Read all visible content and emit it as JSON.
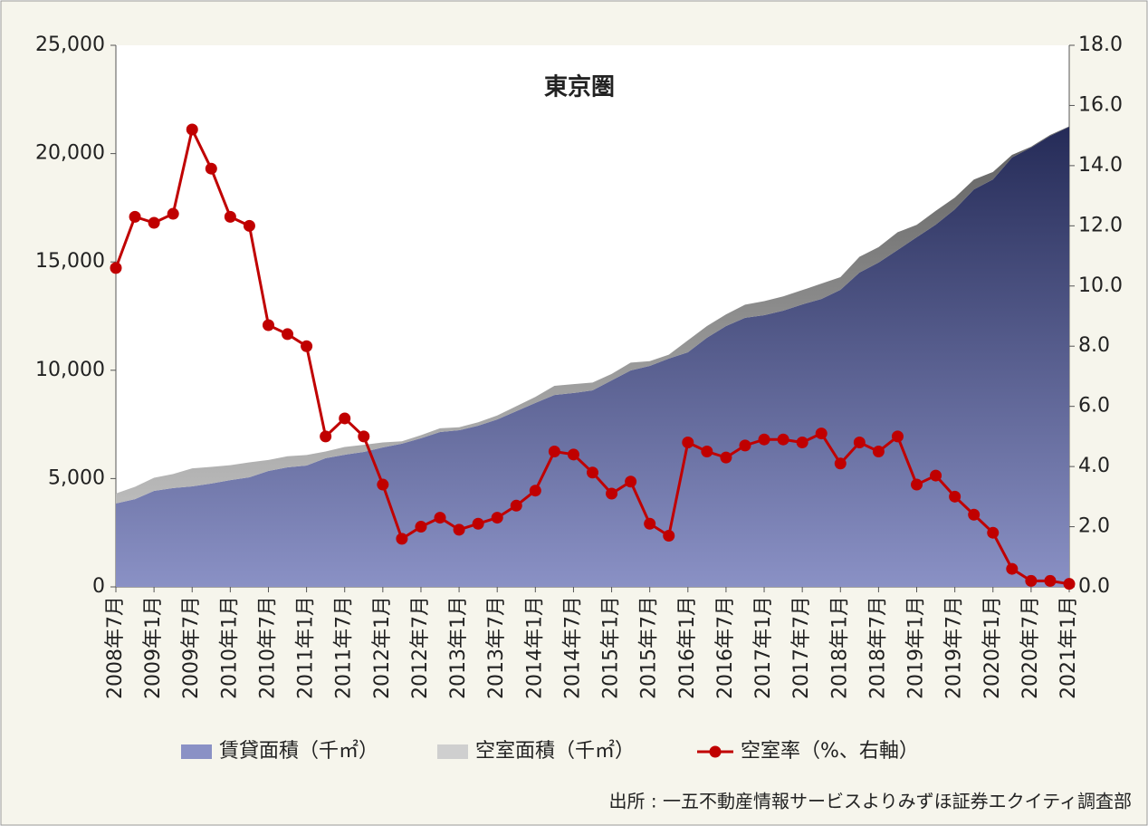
{
  "chart_data": {
    "type": "area",
    "title": "東京圏",
    "source": "出所 : 一五不動産情報サービスよりみずほ証券エクイティ調査部",
    "stacked": true,
    "categories": [
      "2008年7月",
      null,
      "2009年1月",
      null,
      "2009年7月",
      null,
      "2010年1月",
      null,
      "2010年7月",
      null,
      "2011年1月",
      null,
      "2011年7月",
      null,
      "2012年1月",
      null,
      "2012年7月",
      null,
      "2013年1月",
      null,
      "2013年7月",
      null,
      "2014年1月",
      null,
      "2014年7月",
      null,
      "2015年1月",
      null,
      "2015年7月",
      null,
      "2016年1月",
      null,
      "2016年7月",
      null,
      "2017年1月",
      null,
      "2017年7月",
      null,
      "2018年1月",
      null,
      "2018年7月",
      null,
      "2019年1月",
      null,
      "2019年7月",
      null,
      "2020年1月",
      null,
      "2020年7月",
      null,
      "2021年1月"
    ],
    "series": [
      {
        "name": "賃貸面積（千㎡）",
        "type": "area",
        "color": "#2b3796",
        "values": [
          3850,
          4050,
          4430,
          4560,
          4640,
          4770,
          4930,
          5060,
          5350,
          5520,
          5600,
          5940,
          6100,
          6230,
          6440,
          6610,
          6860,
          7150,
          7230,
          7440,
          7730,
          8110,
          8490,
          8860,
          8950,
          9070,
          9530,
          9990,
          10200,
          10540,
          10830,
          11500,
          12040,
          12420,
          12540,
          12750,
          13040,
          13290,
          13710,
          14510,
          14970,
          15550,
          16140,
          16720,
          17430,
          18350,
          18810,
          19820,
          20280,
          20820,
          21240
        ]
      },
      {
        "name": "空室面積（千㎡）",
        "type": "area",
        "color": "#a8a8a8",
        "values": [
          460,
          570,
          610,
          650,
          830,
          770,
          690,
          690,
          510,
          510,
          490,
          310,
          360,
          330,
          230,
          110,
          140,
          170,
          140,
          160,
          180,
          230,
          280,
          420,
          410,
          360,
          300,
          360,
          220,
          180,
          550,
          540,
          540,
          610,
          650,
          660,
          660,
          710,
          590,
          730,
          710,
          820,
          570,
          640,
          540,
          450,
          340,
          120,
          40,
          40,
          20
        ]
      },
      {
        "name": "空室率（%、右軸）",
        "type": "line",
        "axis": "y2",
        "color": "#c00000",
        "values": [
          10.6,
          12.3,
          12.1,
          12.4,
          15.2,
          13.9,
          12.3,
          12.0,
          8.7,
          8.4,
          8.0,
          5.0,
          5.6,
          5.0,
          3.4,
          1.6,
          2.0,
          2.3,
          1.9,
          2.1,
          2.3,
          2.7,
          3.2,
          4.5,
          4.4,
          3.8,
          3.1,
          3.5,
          2.1,
          1.7,
          4.8,
          4.5,
          4.3,
          4.7,
          4.9,
          4.9,
          4.8,
          5.1,
          4.1,
          4.8,
          4.5,
          5.0,
          3.4,
          3.7,
          3.0,
          2.4,
          1.8,
          0.6,
          0.2,
          0.2,
          0.1
        ]
      }
    ],
    "ylim": [
      0,
      25000
    ],
    "yticks": [
      0,
      {
        "value": 5000,
        "label": "5,000"
      },
      {
        "value": 10000,
        "label": "10,000"
      },
      {
        "value": 15000,
        "label": "15,000"
      },
      {
        "value": 20000,
        "label": "20,000"
      },
      {
        "value": 25000,
        "label": "25,000"
      }
    ],
    "y2lim": [
      0,
      18
    ],
    "y2ticks": [
      {
        "value": 0,
        "label": "0.0"
      },
      {
        "value": 2,
        "label": "2.0"
      },
      {
        "value": 4,
        "label": "4.0"
      },
      {
        "value": 6,
        "label": "6.0"
      },
      {
        "value": 8,
        "label": "8.0"
      },
      {
        "value": 10,
        "label": "10.0"
      },
      {
        "value": 12,
        "label": "12.0"
      },
      {
        "value": 14,
        "label": "14.0"
      },
      {
        "value": 16,
        "label": "16.0"
      },
      {
        "value": 18,
        "label": "18.0"
      }
    ],
    "grid": false,
    "legend": "bottom"
  }
}
